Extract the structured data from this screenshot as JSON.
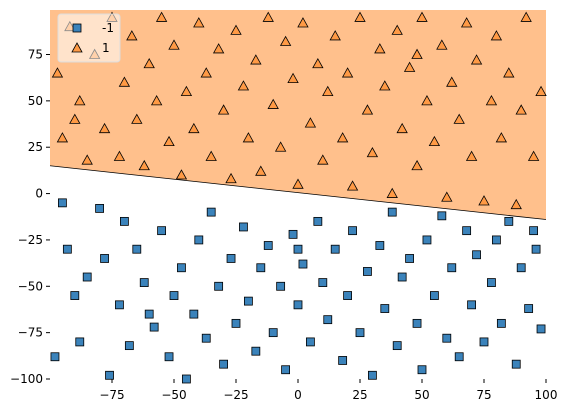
{
  "chart_data": {
    "type": "scatter",
    "xlim": [
      -100,
      100
    ],
    "ylim": [
      -100,
      99
    ],
    "xticks": [
      {
        "value": -75,
        "label": "−75"
      },
      {
        "value": -50,
        "label": "−50"
      },
      {
        "value": -25,
        "label": "−25"
      },
      0,
      25,
      50,
      75,
      100
    ],
    "yticks": [
      {
        "value": -100,
        "label": "−100"
      },
      {
        "value": -75,
        "label": "−75"
      },
      {
        "value": -50,
        "label": "−50"
      },
      {
        "value": -25,
        "label": "−25"
      },
      0,
      25,
      50,
      75
    ],
    "decision_boundary": {
      "x": [
        -100,
        100
      ],
      "y": [
        15,
        -14
      ],
      "region_color": "#ffc08c"
    },
    "legend": "upper left",
    "series": [
      {
        "name": "-1",
        "marker": "square",
        "color": "#3b83bb",
        "x": [
          -95,
          -90,
          -88,
          -85,
          -80,
          -78,
          -76,
          -72,
          -70,
          -68,
          -65,
          -62,
          -58,
          -55,
          -52,
          -50,
          -47,
          -45,
          -42,
          -40,
          -37,
          -35,
          -32,
          -30,
          -27,
          -25,
          -22,
          -20,
          -17,
          -15,
          -12,
          -10,
          -7,
          -5,
          -2,
          0,
          2,
          5,
          8,
          10,
          12,
          15,
          18,
          20,
          22,
          25,
          28,
          30,
          33,
          35,
          38,
          40,
          42,
          45,
          48,
          50,
          52,
          55,
          58,
          60,
          62,
          65,
          68,
          70,
          72,
          75,
          78,
          80,
          82,
          85,
          88,
          90,
          93,
          96,
          98,
          -98,
          -93,
          -60,
          0,
          95
        ],
        "y": [
          -5,
          -55,
          -80,
          -45,
          -8,
          -35,
          -98,
          -60,
          -15,
          -82,
          -30,
          -48,
          -72,
          -20,
          -88,
          -55,
          -40,
          -100,
          -65,
          -25,
          -78,
          -10,
          -50,
          -92,
          -35,
          -70,
          -18,
          -58,
          -85,
          -40,
          -28,
          -75,
          -50,
          -95,
          -22,
          -60,
          -38,
          -80,
          -15,
          -48,
          -68,
          -30,
          -90,
          -55,
          -20,
          -75,
          -42,
          -98,
          -28,
          -62,
          -10,
          -82,
          -45,
          -35,
          -70,
          -95,
          -25,
          -55,
          -12,
          -78,
          -40,
          -88,
          -20,
          -60,
          -33,
          -80,
          -48,
          -25,
          -70,
          -15,
          -92,
          -40,
          -62,
          -30,
          -73,
          -88,
          -30,
          -65,
          -30,
          -20
        ]
      },
      {
        "name": "1",
        "marker": "triangle",
        "color": "#ff9a45",
        "x": [
          -97,
          -95,
          -92,
          -88,
          -85,
          -82,
          -78,
          -75,
          -72,
          -70,
          -67,
          -65,
          -62,
          -60,
          -57,
          -55,
          -52,
          -50,
          -47,
          -45,
          -42,
          -40,
          -37,
          -35,
          -32,
          -30,
          -27,
          -25,
          -22,
          -20,
          -17,
          -15,
          -12,
          -10,
          -7,
          -5,
          -2,
          0,
          2,
          5,
          8,
          10,
          12,
          15,
          18,
          20,
          22,
          25,
          28,
          30,
          33,
          35,
          38,
          40,
          42,
          45,
          48,
          50,
          52,
          55,
          58,
          60,
          62,
          65,
          68,
          70,
          72,
          75,
          78,
          80,
          82,
          85,
          88,
          90,
          92,
          95,
          98,
          -90,
          48
        ],
        "y": [
          65,
          30,
          90,
          50,
          18,
          75,
          35,
          95,
          20,
          60,
          85,
          40,
          15,
          70,
          50,
          95,
          28,
          80,
          10,
          55,
          35,
          92,
          65,
          20,
          78,
          45,
          8,
          88,
          58,
          30,
          72,
          12,
          95,
          48,
          25,
          82,
          62,
          5,
          92,
          38,
          70,
          18,
          55,
          85,
          30,
          65,
          4,
          95,
          45,
          22,
          78,
          58,
          0,
          88,
          35,
          68,
          15,
          95,
          50,
          28,
          80,
          -2,
          60,
          40,
          92,
          20,
          72,
          -4,
          50,
          85,
          30,
          65,
          -6,
          45,
          95,
          20,
          55,
          40,
          75
        ]
      }
    ]
  }
}
